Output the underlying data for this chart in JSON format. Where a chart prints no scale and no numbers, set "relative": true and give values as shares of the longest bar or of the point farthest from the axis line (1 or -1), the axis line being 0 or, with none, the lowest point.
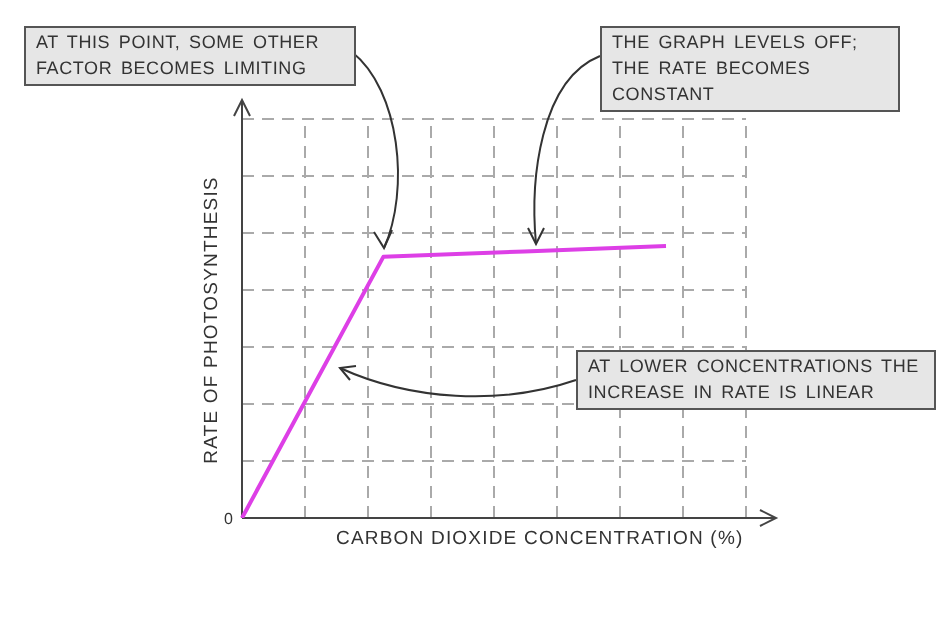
{
  "chart_data": {
    "type": "line",
    "relative": true,
    "xlabel": "CARBON DIOXIDE CONCENTRATION (%)",
    "ylabel": "RATE OF PHOTOSYNTHESIS",
    "categories": [
      null,
      null,
      null,
      null
    ],
    "series": [
      {
        "color": "#dd3fe6",
        "values": [
          0,
          0.96,
          0.98,
          1
        ]
      }
    ],
    "grid": true,
    "marker": "none",
    "line_style": "solid",
    "annotations": [
      "0",
      "AT THIS POINT, SOME OTHER FACTOR BECOMES LIMITING",
      "THE GRAPH LEVELS OFF; THE RATE BECOMES CONSTANT",
      "AT LOWER CONCENTRATIONS THE INCREASE IN RATE IS LINEAR"
    ]
  }
}
